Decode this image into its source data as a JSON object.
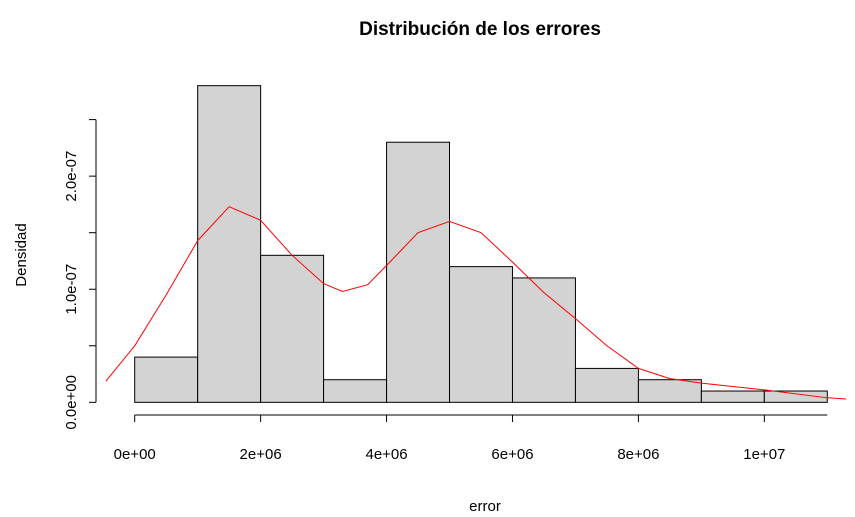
{
  "chart_data": {
    "type": "histogram",
    "title": "Distribución de los errores",
    "xlabel": "error",
    "ylabel": "Densidad",
    "bins": [
      0,
      1000000,
      2000000,
      3000000,
      4000000,
      5000000,
      6000000,
      7000000,
      8000000,
      9000000,
      10000000,
      11000000
    ],
    "values": [
      4e-08,
      2.8e-07,
      1.3e-07,
      2e-08,
      2.3e-07,
      1.2e-07,
      1.1e-07,
      3e-08,
      2e-08,
      1e-08,
      1e-08
    ],
    "color": "#d3d3d3",
    "edgecolor": "#000000",
    "density": {
      "color": "#ff0000",
      "x": [
        -460000,
        0,
        500000,
        1000000,
        1500000,
        2000000,
        2500000,
        3000000,
        3300000,
        3700000,
        4000000,
        4500000,
        5000000,
        5500000,
        6000000,
        6500000,
        7000000,
        7500000,
        8000000,
        8500000,
        9000000,
        10000000,
        11000000,
        11300000
      ],
      "y": [
        1.86e-08,
        5e-08,
        9.5e-08,
        1.43e-07,
        1.73e-07,
        1.61e-07,
        1.3e-07,
        1.05e-07,
        9.8e-08,
        1.04e-07,
        1.21e-07,
        1.5e-07,
        1.6e-07,
        1.5e-07,
        1.24e-07,
        9.7e-08,
        7.4e-08,
        5e-08,
        3e-08,
        2.1e-08,
        1.7e-08,
        1.1e-08,
        4e-09,
        3e-09
      ]
    },
    "xlim": [
      -440000,
      11440000
    ],
    "ylim": [
      -1.12e-08,
      2.912e-07
    ],
    "xticks": [
      {
        "value": 0,
        "label": "0e+00"
      },
      {
        "value": 2000000,
        "label": "2e+06"
      },
      {
        "value": 4000000,
        "label": "4e+06"
      },
      {
        "value": 6000000,
        "label": "6e+06"
      },
      {
        "value": 8000000,
        "label": "8e+06"
      },
      {
        "value": 10000000,
        "label": "1e+07"
      }
    ],
    "yticks": [
      {
        "value": 0,
        "label": "0.0e+00"
      },
      {
        "value": 1e-07,
        "label": "1.0e-07"
      },
      {
        "value": 2e-07,
        "label": "2.0e-07"
      }
    ],
    "yminorticks": [
      5e-08,
      1.5e-07,
      2.5e-07
    ]
  }
}
